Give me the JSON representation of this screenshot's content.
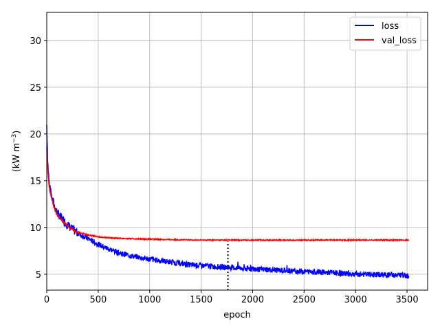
{
  "chart_data": {
    "type": "line",
    "title": "",
    "xlabel": "epoch",
    "ylabel": "(kW m",
    "ylabel_sup": "−3",
    "ylabel_close": ")",
    "xlim": [
      0,
      3700
    ],
    "ylim": [
      3.3,
      33
    ],
    "xticks": [
      0,
      500,
      1000,
      1500,
      2000,
      2500,
      3000,
      3500
    ],
    "yticks": [
      5,
      10,
      15,
      20,
      25,
      30
    ],
    "grid": true,
    "legend_position": "top-right",
    "series": [
      {
        "name": "loss",
        "color": "#0000ff",
        "x": [
          0,
          10,
          25,
          50,
          75,
          100,
          150,
          200,
          250,
          300,
          400,
          500,
          600,
          700,
          800,
          900,
          1000,
          1200,
          1400,
          1600,
          1800,
          2000,
          2200,
          2400,
          2600,
          2800,
          3000,
          3200,
          3400,
          3520
        ],
        "y": [
          21,
          17,
          14.5,
          13.2,
          12.3,
          11.6,
          10.9,
          10.3,
          9.8,
          9.4,
          8.8,
          8.2,
          7.7,
          7.3,
          7.0,
          6.8,
          6.6,
          6.3,
          6.0,
          5.85,
          5.7,
          5.55,
          5.45,
          5.35,
          5.25,
          5.15,
          5.0,
          4.95,
          4.9,
          4.85
        ]
      },
      {
        "name": "val_loss",
        "color": "#ff0000",
        "x": [
          0,
          10,
          25,
          50,
          75,
          100,
          150,
          200,
          250,
          300,
          400,
          500,
          600,
          700,
          800,
          1000,
          1200,
          1500,
          2000,
          2500,
          3000,
          3520
        ],
        "y": [
          18.5,
          16,
          14.2,
          13.0,
          12.0,
          11.4,
          10.7,
          10.2,
          9.8,
          9.5,
          9.2,
          9.0,
          8.9,
          8.85,
          8.8,
          8.75,
          8.7,
          8.65,
          8.65,
          8.65,
          8.65,
          8.65
        ]
      }
    ],
    "annotation": {
      "type": "vertical-dotted-line",
      "x": 1760,
      "y_from": 3.3,
      "y_to": 8.5
    }
  }
}
